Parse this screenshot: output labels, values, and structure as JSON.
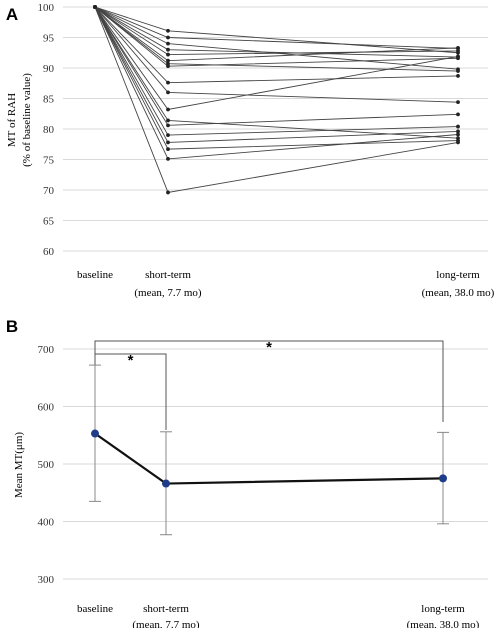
{
  "chart_data": [
    {
      "panel": "A",
      "type": "line",
      "ylabel": "MT of RAH",
      "ylabel2": "(% of baseline value)",
      "categories": [
        "baseline",
        "short-term",
        "long-term"
      ],
      "category_sublabels": [
        "",
        "(mean, 7.7 mo)",
        "(mean, 38.0 mo)"
      ],
      "ylim": [
        60,
        100
      ],
      "yticks": [
        "100",
        "95",
        "90",
        "85",
        "80",
        "75",
        "70",
        "65",
        "60"
      ],
      "grid": true,
      "series": [
        {
          "values": [
            100,
            96.1,
            92.5
          ]
        },
        {
          "values": [
            100,
            95.0,
            93.2
          ]
        },
        {
          "values": [
            100,
            94.0,
            89.8
          ]
        },
        {
          "values": [
            100,
            93.0,
            91.8
          ]
        },
        {
          "values": [
            100,
            92.2,
            92.8
          ]
        },
        {
          "values": [
            100,
            91.2,
            93.3
          ]
        },
        {
          "values": [
            100,
            90.7,
            89.5
          ]
        },
        {
          "values": [
            100,
            90.3,
            91.6
          ]
        },
        {
          "values": [
            100,
            87.6,
            88.7
          ]
        },
        {
          "values": [
            100,
            86.0,
            84.4
          ]
        },
        {
          "values": [
            100,
            83.2,
            91.9
          ]
        },
        {
          "values": [
            100,
            81.4,
            78.5
          ]
        },
        {
          "values": [
            100,
            80.6,
            82.4
          ]
        },
        {
          "values": [
            100,
            79.0,
            80.4
          ]
        },
        {
          "values": [
            100,
            77.8,
            79.6
          ]
        },
        {
          "values": [
            100,
            76.7,
            78.1
          ]
        },
        {
          "values": [
            100,
            75.1,
            79.1
          ]
        },
        {
          "values": [
            100,
            69.6,
            77.8
          ]
        }
      ]
    },
    {
      "panel": "B",
      "type": "line",
      "ylabel": "Mean MT(μm)",
      "categories": [
        "baseline",
        "short-term",
        "long-term"
      ],
      "category_sublabels": [
        "",
        "(mean, 7.7 mo)",
        "(mean, 38.0 mo)"
      ],
      "ylim": [
        300,
        700
      ],
      "yticks": [
        "700",
        "600",
        "500",
        "400",
        "300"
      ],
      "grid": true,
      "series": [
        {
          "values": [
            553,
            466,
            475
          ],
          "err_low": [
            435,
            377,
            396
          ],
          "err_high": [
            672,
            556,
            555
          ],
          "color": "#1f3c88"
        }
      ],
      "annotations": [
        {
          "text": "*",
          "from": "baseline",
          "to": "short-term"
        },
        {
          "text": "*",
          "from": "baseline",
          "to": "long-term"
        }
      ]
    }
  ]
}
